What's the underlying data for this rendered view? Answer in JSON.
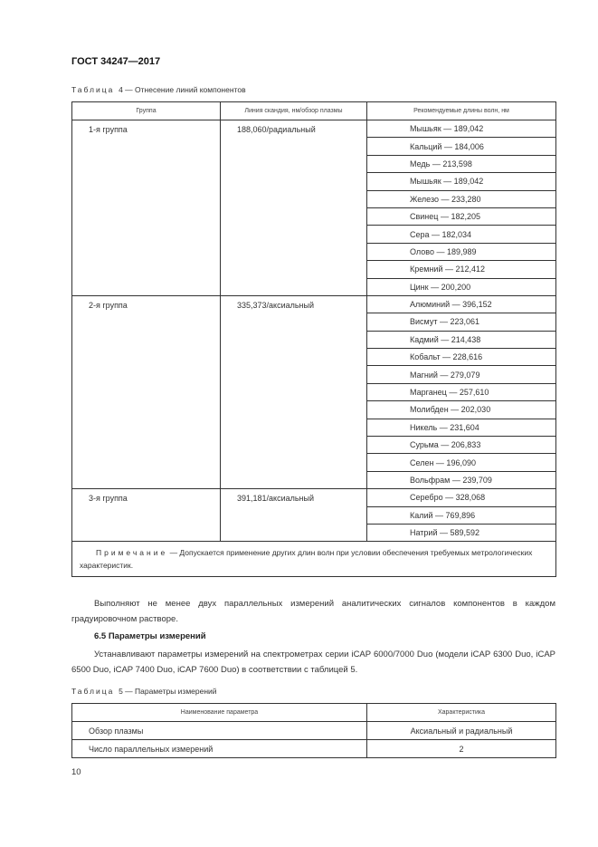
{
  "header": {
    "doc_code": "ГОСТ 34247—2017"
  },
  "table4": {
    "caption_prefix": "Таблица",
    "caption_text": "4 — Отнесение линий компонентов",
    "columns": [
      "Группа",
      "Линия скандия, нм/обзор плазмы",
      "Рекомендуемые длины волн, нм"
    ],
    "groups": [
      {
        "group": "1-я группа",
        "scandium": "188,060/радиальный",
        "elements": [
          "Мышьяк — 189,042",
          "Кальций — 184,006",
          "Медь — 213,598",
          "Мышьяк — 189,042",
          "Железо — 233,280",
          "Свинец — 182,205",
          "Сера — 182,034",
          "Олово — 189,989",
          "Кремний — 212,412",
          "Цинк — 200,200"
        ]
      },
      {
        "group": "2-я группа",
        "scandium": "335,373/аксиальный",
        "elements": [
          "Алюминий — 396,152",
          "Висмут — 223,061",
          "Кадмий — 214,438",
          "Кобальт — 228,616",
          "Магний — 279,079",
          "Марганец — 257,610",
          "Молибден — 202,030",
          "Никель — 231,604",
          "Сурьма — 206,833",
          "Селен — 196,090",
          "Вольфрам — 239,709"
        ]
      },
      {
        "group": "3-я группа",
        "scandium": "391,181/аксиальный",
        "elements": [
          "Серебро — 328,068",
          "Калий — 769,896",
          "Натрий — 589,592"
        ]
      }
    ],
    "note_label": "Примечание",
    "note_text": " — Допускается применение других длин волн при условии обеспечения требуемых метрологических характеристик."
  },
  "paragraph1": "Выполняют не менее двух параллельных измерений аналитических сигналов компонентов в каждом градуировочном растворе.",
  "section_heading": "6.5 Параметры измерений",
  "paragraph2": "Устанавливают параметры измерений на спектрометрах серии iCAP 6000/7000 Duo (модели iCAP 6300 Duo, iCAP 6500 Duo, iCAP 7400 Duo, iCAP 7600 Duo) в соответствии с таблицей 5.",
  "table5": {
    "caption_prefix": "Таблица",
    "caption_text": "5 — Параметры измерений",
    "columns": [
      "Наименование параметра",
      "Характеристика"
    ],
    "rows": [
      {
        "param": "Обзор плазмы",
        "value": "Аксиальный и радиальный"
      },
      {
        "param": "Число параллельных измерений",
        "value": "2"
      }
    ]
  },
  "page_number": "10"
}
